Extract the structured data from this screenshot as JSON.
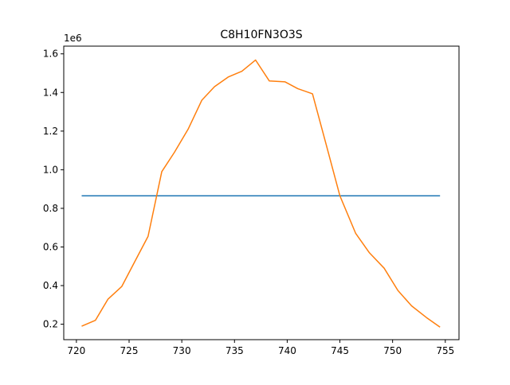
{
  "chart_data": {
    "type": "line",
    "title": "C8H10FN3O3S",
    "xlabel": "",
    "ylabel": "",
    "y_offset_label": "1e6",
    "xlim": [
      718.8,
      756.3
    ],
    "ylim": [
      0.12,
      1.64
    ],
    "x_ticks": [
      720,
      725,
      730,
      735,
      740,
      745,
      750,
      755
    ],
    "x_tick_labels": [
      "720",
      "725",
      "730",
      "735",
      "740",
      "745",
      "750",
      "755"
    ],
    "y_ticks": [
      0.2,
      0.4,
      0.6,
      0.8,
      1.0,
      1.2,
      1.4,
      1.6
    ],
    "y_tick_labels": [
      "0.2",
      "0.4",
      "0.6",
      "0.8",
      "1.0",
      "1.2",
      "1.4",
      "1.6"
    ],
    "grid": false,
    "series": [
      {
        "color": "#1f77b4",
        "x": [
          720.5,
          754.5
        ],
        "y": [
          0.865,
          0.865
        ]
      },
      {
        "color": "#ff7f0e",
        "x": [
          720.5,
          721.8,
          723.0,
          724.3,
          725.5,
          726.8,
          728.1,
          729.3,
          730.6,
          731.9,
          733.1,
          734.4,
          735.7,
          737.0,
          738.3,
          739.8,
          741.0,
          742.4,
          743.7,
          745.0,
          746.5,
          747.8,
          749.2,
          750.5,
          751.8,
          753.2,
          754.5
        ],
        "y": [
          0.19,
          0.22,
          0.33,
          0.395,
          0.52,
          0.655,
          0.99,
          1.09,
          1.21,
          1.36,
          1.43,
          1.48,
          1.51,
          1.568,
          1.46,
          1.455,
          1.42,
          1.393,
          1.13,
          0.865,
          0.67,
          0.57,
          0.49,
          0.375,
          0.295,
          0.235,
          0.185
        ]
      }
    ]
  }
}
